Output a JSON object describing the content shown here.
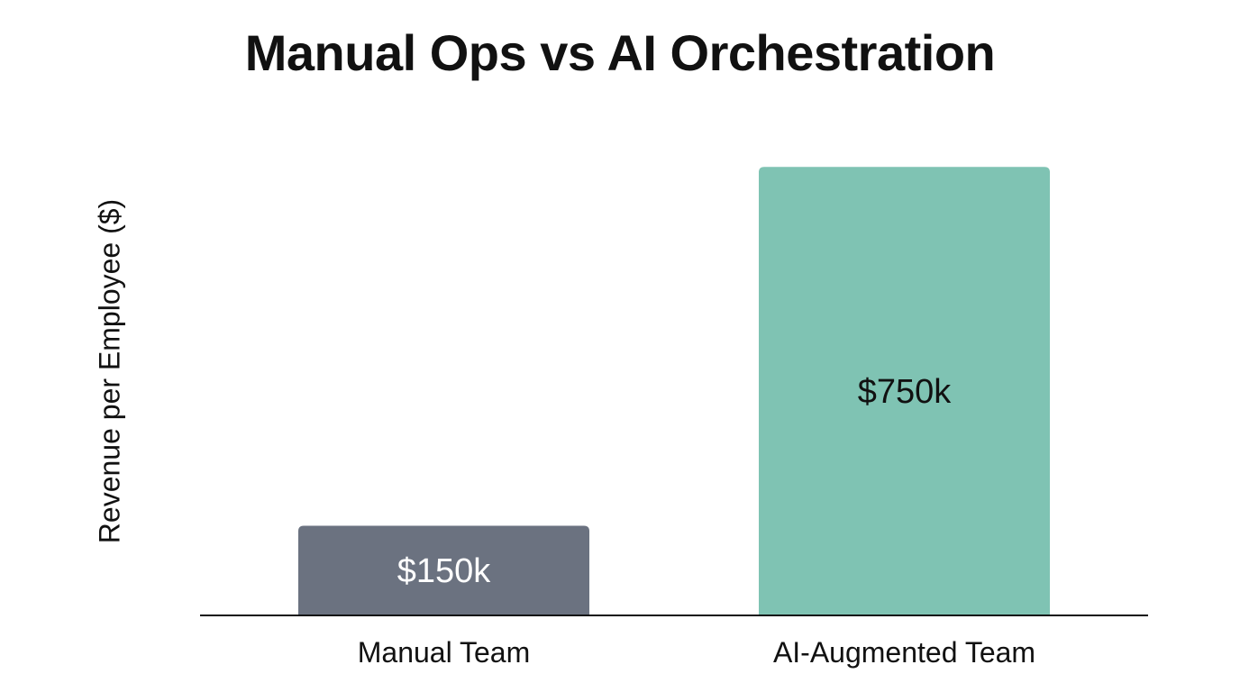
{
  "chart_data": {
    "type": "bar",
    "title": "Manual Ops vs AI Orchestration",
    "xlabel": "",
    "ylabel": "Revenue per Employee ($)",
    "categories": [
      "Manual Team",
      "AI-Augmented Team"
    ],
    "values": [
      150000,
      750000
    ],
    "data_labels": [
      "$150k",
      "$750k"
    ],
    "colors": [
      "#6b7280",
      "#7fc3b3"
    ],
    "label_colors": [
      "#ffffff",
      "#111111"
    ],
    "ylim": [
      0,
      800000
    ],
    "grid": false,
    "y_ticks_shown": false
  }
}
